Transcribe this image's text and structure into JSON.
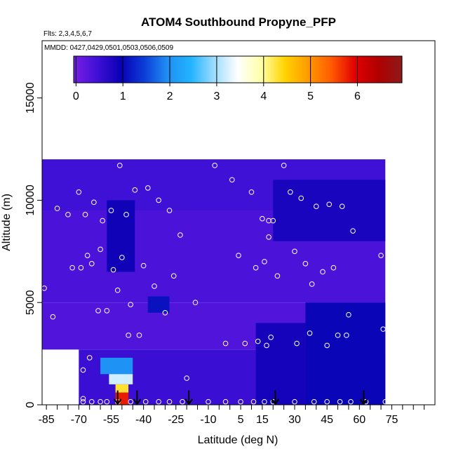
{
  "chart_data": {
    "type": "heatmap",
    "title": "ATOM4 Southbound Propyne_PFP",
    "subtitle_flights": "Flts: 2,3,4,5,6,7",
    "subtitle_dates": "MMDD: 0427,0429,0501,0503,0506,0509",
    "xlabel": "Latitude (deg N)",
    "ylabel": "Altitude (m)",
    "xlim": [
      -87,
      95
    ],
    "ylim": [
      0,
      17800
    ],
    "x_ticks": [
      -85,
      -70,
      -55,
      -40,
      -25,
      -10,
      5,
      15,
      30,
      45,
      60,
      75
    ],
    "y_ticks": [
      0,
      5000,
      10000,
      15000
    ],
    "colorbar": {
      "range": [
        -0.05,
        6.95
      ],
      "ticks": [
        0,
        1,
        2,
        3,
        4,
        5,
        6
      ],
      "colors": [
        "#7a1ee6",
        "#3f10d6",
        "#0a00b4",
        "#0b3cd8",
        "#1f8ff4",
        "#22b4ff",
        "#9fdcff",
        "#ffffff",
        "#ffffa8",
        "#ffd400",
        "#ff9a00",
        "#ff5a00",
        "#e00000",
        "#b00000",
        "#8c1a1a"
      ]
    },
    "cells": [
      {
        "lat0": -87,
        "lat1": 72,
        "alt0": 9500,
        "alt1": 12000,
        "value": 0.45
      },
      {
        "lat0": -87,
        "lat1": 72,
        "alt0": 5000,
        "alt1": 9500,
        "value": 0.35
      },
      {
        "lat0": -87,
        "lat1": 72,
        "alt0": 2700,
        "alt1": 5000,
        "value": 0.3
      },
      {
        "lat0": -70,
        "lat1": 72,
        "alt0": 0,
        "alt1": 2700,
        "value": 0.5
      },
      {
        "lat0": -57,
        "lat1": -44,
        "alt0": 6500,
        "alt1": 10000,
        "value": 0.9
      },
      {
        "lat0": -38,
        "lat1": -28,
        "alt0": 4500,
        "alt1": 5300,
        "value": 1.1
      },
      {
        "lat0": 12,
        "lat1": 35,
        "alt0": 0,
        "alt1": 4000,
        "value": 0.85
      },
      {
        "lat0": 35,
        "lat1": 72,
        "alt0": 0,
        "alt1": 5000,
        "value": 1.0
      },
      {
        "lat0": 20,
        "lat1": 72,
        "alt0": 8000,
        "alt1": 11000,
        "value": 0.8
      },
      {
        "lat0": -60,
        "lat1": -45,
        "alt0": 1500,
        "alt1": 2300,
        "value": 2.0
      },
      {
        "lat0": -56,
        "lat1": -45,
        "alt0": 1000,
        "alt1": 1500,
        "value": 3.2
      },
      {
        "lat0": -53,
        "lat1": -47,
        "alt0": 600,
        "alt1": 1000,
        "value": 4.3
      },
      {
        "lat0": -53,
        "lat1": -47,
        "alt0": 0,
        "alt1": 600,
        "value": 5.8
      }
    ],
    "sample_points": [
      {
        "lat": -86,
        "alt": 5700
      },
      {
        "lat": -82,
        "alt": 4300
      },
      {
        "lat": -80,
        "alt": 9600
      },
      {
        "lat": -75,
        "alt": 9300
      },
      {
        "lat": -73,
        "alt": 6700
      },
      {
        "lat": -72,
        "alt": 2500
      },
      {
        "lat": -70,
        "alt": 10400
      },
      {
        "lat": -69,
        "alt": 6700
      },
      {
        "lat": -68,
        "alt": 1700
      },
      {
        "lat": -68,
        "alt": 300
      },
      {
        "lat": -67,
        "alt": 9300
      },
      {
        "lat": -66,
        "alt": 7300
      },
      {
        "lat": -65,
        "alt": 2300
      },
      {
        "lat": -64,
        "alt": 6900
      },
      {
        "lat": -63,
        "alt": 9900
      },
      {
        "lat": -61,
        "alt": 4600
      },
      {
        "lat": -60,
        "alt": 7600
      },
      {
        "lat": -59,
        "alt": 9000
      },
      {
        "lat": -57,
        "alt": 4600
      },
      {
        "lat": -55,
        "alt": 9500
      },
      {
        "lat": -54,
        "alt": 6600
      },
      {
        "lat": -52,
        "alt": 5600
      },
      {
        "lat": -51,
        "alt": 11700
      },
      {
        "lat": -50,
        "alt": 7200
      },
      {
        "lat": -48,
        "alt": 9300
      },
      {
        "lat": -47,
        "alt": 3400
      },
      {
        "lat": -46,
        "alt": 4900
      },
      {
        "lat": -44,
        "alt": 10500
      },
      {
        "lat": -42,
        "alt": 3400
      },
      {
        "lat": -40,
        "alt": 6800
      },
      {
        "lat": -38,
        "alt": 10600
      },
      {
        "lat": -35,
        "alt": 5800
      },
      {
        "lat": -33,
        "alt": 10000
      },
      {
        "lat": -30,
        "alt": 4500
      },
      {
        "lat": -28,
        "alt": 9500
      },
      {
        "lat": -26,
        "alt": 6300
      },
      {
        "lat": -23,
        "alt": 8300
      },
      {
        "lat": -20,
        "alt": 1300
      },
      {
        "lat": -16,
        "alt": 5000
      },
      {
        "lat": -7,
        "alt": 11700
      },
      {
        "lat": -2,
        "alt": 3000
      },
      {
        "lat": 1,
        "alt": 11000
      },
      {
        "lat": 4,
        "alt": 7300
      },
      {
        "lat": 7,
        "alt": 3000
      },
      {
        "lat": 10,
        "alt": 10400
      },
      {
        "lat": 12,
        "alt": 6700
      },
      {
        "lat": 13,
        "alt": 3100
      },
      {
        "lat": 15,
        "alt": 9100
      },
      {
        "lat": 16,
        "alt": 7000
      },
      {
        "lat": 17,
        "alt": 2900
      },
      {
        "lat": 18,
        "alt": 9000
      },
      {
        "lat": 18,
        "alt": 8200
      },
      {
        "lat": 19,
        "alt": 3300
      },
      {
        "lat": 20,
        "alt": 9000
      },
      {
        "lat": 22,
        "alt": 6300
      },
      {
        "lat": 25,
        "alt": 11700
      },
      {
        "lat": 28,
        "alt": 10400
      },
      {
        "lat": 30,
        "alt": 7500
      },
      {
        "lat": 31,
        "alt": 3000
      },
      {
        "lat": 33,
        "alt": 10100
      },
      {
        "lat": 35,
        "alt": 6900
      },
      {
        "lat": 37,
        "alt": 3500
      },
      {
        "lat": 38,
        "alt": 5900
      },
      {
        "lat": 40,
        "alt": 9700
      },
      {
        "lat": 43,
        "alt": 6500
      },
      {
        "lat": 45,
        "alt": 2900
      },
      {
        "lat": 46,
        "alt": 9800
      },
      {
        "lat": 48,
        "alt": 6700
      },
      {
        "lat": 50,
        "alt": 3400
      },
      {
        "lat": 52,
        "alt": 9700
      },
      {
        "lat": 54,
        "alt": 3400
      },
      {
        "lat": 55,
        "alt": 4400
      },
      {
        "lat": 57,
        "alt": 8500
      },
      {
        "lat": 70,
        "alt": 7300
      },
      {
        "lat": 71,
        "alt": 3700
      },
      {
        "lat": 72,
        "alt": 150
      },
      {
        "lat": -68,
        "alt": 150
      },
      {
        "lat": -64,
        "alt": 150
      },
      {
        "lat": -60,
        "alt": 150
      },
      {
        "lat": -57,
        "alt": 150
      },
      {
        "lat": -52,
        "alt": 150
      },
      {
        "lat": -46,
        "alt": 150
      },
      {
        "lat": -39,
        "alt": 150
      },
      {
        "lat": -33,
        "alt": 150
      },
      {
        "lat": -28,
        "alt": 150
      },
      {
        "lat": -22,
        "alt": 150
      },
      {
        "lat": -10,
        "alt": 150
      },
      {
        "lat": -2,
        "alt": 150
      },
      {
        "lat": 5,
        "alt": 150
      },
      {
        "lat": 11,
        "alt": 150
      },
      {
        "lat": 16,
        "alt": 150
      },
      {
        "lat": 20,
        "alt": 150
      },
      {
        "lat": 30,
        "alt": 150
      },
      {
        "lat": 39,
        "alt": 150
      },
      {
        "lat": 45,
        "alt": 150
      },
      {
        "lat": 51,
        "alt": 150
      },
      {
        "lat": 56,
        "alt": 150
      },
      {
        "lat": 63,
        "alt": 150
      }
    ],
    "arrow_latitudes": [
      -52,
      -43,
      -19,
      21,
      62
    ],
    "grid": false
  }
}
